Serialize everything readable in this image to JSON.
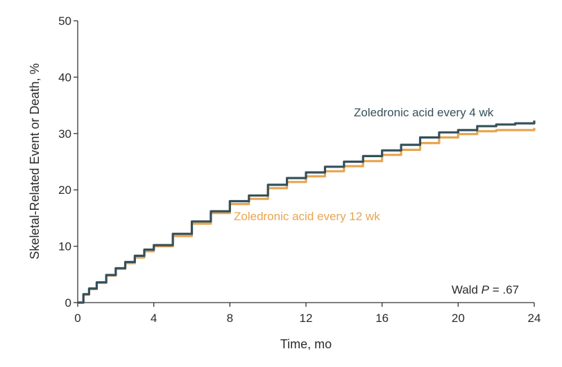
{
  "chart_data": {
    "type": "line",
    "xlabel": "Time, mo",
    "ylabel": "Skeletal-Related Event or Death, %",
    "xlim": [
      0,
      24
    ],
    "ylim": [
      0,
      50
    ],
    "xticks": [
      "0",
      "4",
      "8",
      "12",
      "16",
      "20",
      "24"
    ],
    "yticks": [
      "0",
      "10",
      "20",
      "30",
      "40",
      "50"
    ],
    "grid": false,
    "annotation": {
      "prefix": "Wald ",
      "italic": "P",
      "suffix": " = .67"
    },
    "series": [
      {
        "name": "Zoledronic acid every 4 wk",
        "color": "#34505a",
        "x": [
          0,
          0.3,
          0.6,
          1,
          1.5,
          2,
          2.5,
          3,
          3.5,
          4,
          5,
          6,
          7,
          8,
          9,
          10,
          11,
          12,
          13,
          14,
          15,
          16,
          17,
          18,
          19,
          20,
          21,
          22,
          23,
          24
        ],
        "y": [
          0,
          1.5,
          2.5,
          3.6,
          4.9,
          6.1,
          7.2,
          8.3,
          9.4,
          10.2,
          12.2,
          14.4,
          16.2,
          18.0,
          19.0,
          20.9,
          22.1,
          23.1,
          24.1,
          25.0,
          26.0,
          27.0,
          28.0,
          29.3,
          30.2,
          30.6,
          31.3,
          31.6,
          31.8,
          32.3
        ]
      },
      {
        "name": "Zoledronic acid every 12 wk",
        "color": "#e8a550",
        "x": [
          0,
          0.3,
          0.6,
          1,
          1.5,
          2,
          2.5,
          3,
          3.5,
          4,
          5,
          6,
          7,
          8,
          9,
          10,
          11,
          12,
          13,
          14,
          15,
          16,
          17,
          18,
          19,
          20,
          21,
          22,
          23,
          24
        ],
        "y": [
          0,
          1.4,
          2.4,
          3.5,
          4.8,
          6.0,
          7.0,
          8.0,
          9.1,
          10.0,
          11.8,
          14.0,
          15.9,
          17.5,
          18.4,
          20.3,
          21.4,
          22.4,
          23.3,
          24.2,
          25.1,
          26.2,
          27.1,
          28.3,
          29.3,
          29.9,
          30.4,
          30.6,
          30.6,
          31.0
        ]
      }
    ]
  }
}
